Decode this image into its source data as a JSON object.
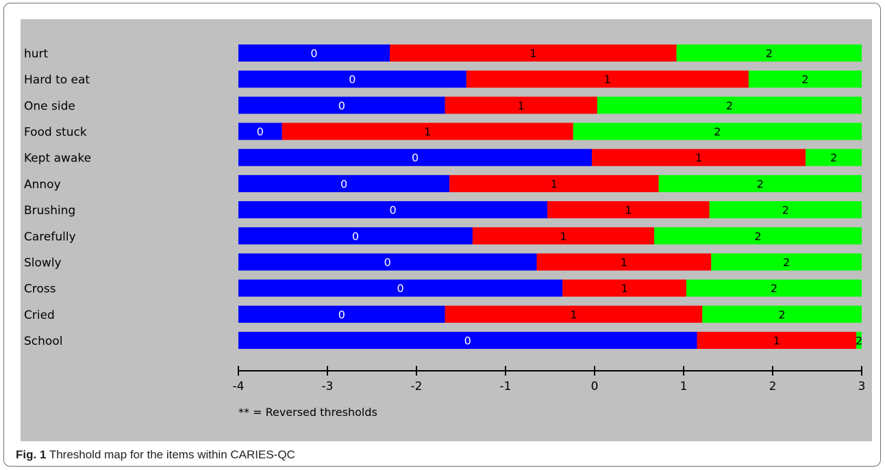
{
  "chart_data": {
    "type": "bar",
    "stacked": true,
    "categories": [
      "hurt",
      "Hard to eat",
      "One side",
      "Food stuck",
      "Kept awake",
      "Annoy",
      "Brushing",
      "Carefully",
      "Slowly",
      "Cross",
      "Cried",
      "School"
    ],
    "xlim": [
      -4,
      3
    ],
    "xticks": [
      -4,
      -3,
      -2,
      -1,
      0,
      1,
      2,
      3
    ],
    "thresholds": [
      [
        -2.3,
        0.92
      ],
      [
        -1.44,
        1.73
      ],
      [
        -1.68,
        0.03
      ],
      [
        -3.51,
        -0.24
      ],
      [
        -0.03,
        2.37
      ],
      [
        -1.63,
        0.72
      ],
      [
        -0.53,
        1.29
      ],
      [
        -1.37,
        0.67
      ],
      [
        -0.65,
        1.31
      ],
      [
        -0.36,
        1.03
      ],
      [
        -1.68,
        1.21
      ],
      [
        1.15,
        2.94
      ]
    ],
    "segments": [
      {
        "label": "0",
        "color": "#0000ff"
      },
      {
        "label": "1",
        "color": "#ff0000"
      },
      {
        "label": "2",
        "color": "#00ff00"
      }
    ],
    "footnote": "** = Reversed thresholds",
    "grid": false,
    "background_color": "#c0c0c0"
  },
  "caption": {
    "label": "Fig. 1",
    "text": "Threshold map for the items within CARIES-QC"
  }
}
